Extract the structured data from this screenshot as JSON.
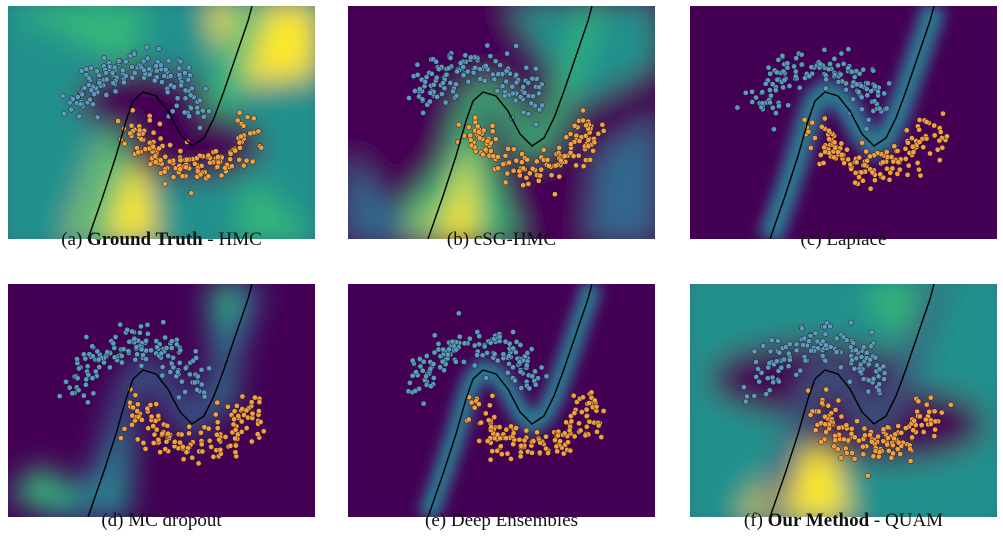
{
  "figure": {
    "panels": [
      {
        "id": "a",
        "prefix": "(a) ",
        "bold": "Ground Truth",
        "suffix": " - HMC",
        "style": "gt"
      },
      {
        "id": "b",
        "prefix": "(b) ",
        "bold": "",
        "suffix": "cSG-HMC",
        "style": "csg"
      },
      {
        "id": "c",
        "prefix": "(c) ",
        "bold": "",
        "suffix": "Laplace",
        "style": "narrow"
      },
      {
        "id": "d",
        "prefix": "(d) ",
        "bold": "",
        "suffix": "MC dropout",
        "style": "dropout"
      },
      {
        "id": "e",
        "prefix": "(e) ",
        "bold": "",
        "suffix": "Deep Ensembles",
        "style": "ensemble"
      },
      {
        "id": "f",
        "prefix": "(f) ",
        "bold": "Our Method",
        "suffix": " - QUAM",
        "style": "quam"
      }
    ],
    "colors": {
      "background": "#440154",
      "band_mid": "#31688e",
      "band_light": "#35b779",
      "yellow": "#fde725",
      "green": "#21918c",
      "class_blue": "#5b9bc0",
      "class_orange": "#f4a040",
      "boundary": "#000000"
    }
  }
}
